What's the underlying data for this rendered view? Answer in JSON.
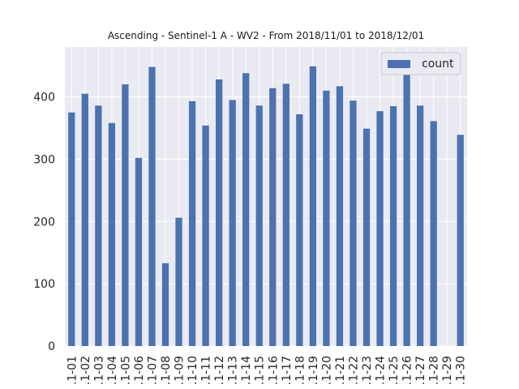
{
  "chart_data": {
    "type": "bar",
    "title": "Ascending - Sentinel-1 A - WV2 - From 2018/11/01 to 2018/12/01",
    "xlabel": "",
    "ylabel": "",
    "categories": [
      ".1-01",
      ".1-02",
      ".1-03",
      ".1-04",
      ".1-05",
      ".1-06",
      ".1-07",
      ".1-08",
      ".1-09",
      ".1-10",
      ".1-11",
      ".1-12",
      ".1-13",
      ".1-14",
      ".1-15",
      ".1-16",
      ".1-17",
      ".1-18",
      ".1-19",
      ".1-20",
      ".1-21",
      ".1-22",
      ".1-23",
      ".1-24",
      ".1-25",
      ".1-26",
      ".1-27",
      ".1-28",
      ".1-29",
      ".1-30"
    ],
    "series": [
      {
        "name": "count",
        "values": [
          375,
          405,
          386,
          358,
          420,
          302,
          448,
          133,
          206,
          393,
          354,
          428,
          395,
          438,
          386,
          414,
          421,
          372,
          449,
          410,
          417,
          394,
          349,
          377,
          385,
          437,
          386,
          361,
          0,
          339
        ]
      }
    ],
    "ylim": [
      0,
      480
    ],
    "yticks": [
      0,
      100,
      200,
      300,
      400
    ],
    "grid": true,
    "legend_position": "top-right",
    "colors": {
      "bar": "#4c72b0",
      "background": "#eaeaf2",
      "grid": "#ffffff"
    }
  }
}
